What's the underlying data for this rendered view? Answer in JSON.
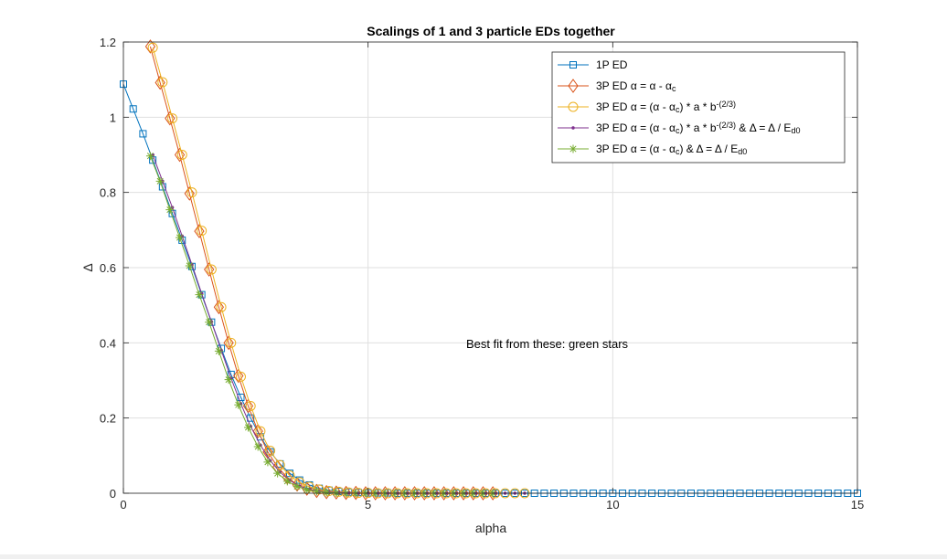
{
  "chart_data": {
    "type": "line",
    "title": "Scalings of 1 and 3 particle EDs together",
    "xlabel": "alpha",
    "ylabel": "Δ",
    "xlim": [
      0,
      15
    ],
    "ylim": [
      0,
      1.2
    ],
    "xticks": [
      0,
      5,
      10,
      15
    ],
    "yticks": [
      0,
      0.2,
      0.4,
      0.6,
      0.8,
      1,
      1.2
    ],
    "xtick_labels": [
      "0",
      "5",
      "10",
      "15"
    ],
    "ytick_labels": [
      "0",
      "0.2",
      "0.4",
      "0.6",
      "0.8",
      "1",
      "1.2"
    ],
    "grid": true,
    "legend_position": "top-right",
    "annotation": "Best fit from these: green stars",
    "series": [
      {
        "name": "1P ED",
        "legend_parts": [
          {
            "t": "1P ED"
          }
        ],
        "color": "#0072BD",
        "marker": "square",
        "x": [
          0,
          0.2,
          0.4,
          0.6,
          0.8,
          1.0,
          1.2,
          1.4,
          1.6,
          1.8,
          2.0,
          2.2,
          2.4,
          2.6,
          2.8,
          3.0,
          3.2,
          3.4,
          3.6,
          3.8,
          4.0,
          4.2,
          4.4,
          4.6,
          4.8,
          5.0,
          5.2,
          5.4,
          5.6,
          5.8,
          6.0,
          6.2,
          6.4,
          6.6,
          6.8,
          7.0,
          7.2,
          7.4,
          7.6,
          7.8,
          8.0,
          8.2,
          8.4,
          8.6,
          8.8,
          9.0,
          9.2,
          9.4,
          9.6,
          9.8,
          10.0,
          10.2,
          10.4,
          10.6,
          10.8,
          11.0,
          11.2,
          11.4,
          11.6,
          11.8,
          12.0,
          12.2,
          12.4,
          12.6,
          12.8,
          13.0,
          13.2,
          13.4,
          13.6,
          13.8,
          14.0,
          14.2,
          14.4,
          14.6,
          14.8,
          15.0
        ],
        "y": [
          1.088,
          1.022,
          0.956,
          0.886,
          0.815,
          0.744,
          0.673,
          0.603,
          0.528,
          0.455,
          0.385,
          0.316,
          0.255,
          0.2,
          0.15,
          0.11,
          0.078,
          0.053,
          0.035,
          0.022,
          0.013,
          0.008,
          0.005,
          0.003,
          0.002,
          0.001,
          0.001,
          0.001,
          0,
          0,
          0,
          0,
          0,
          0,
          0,
          0,
          0,
          0,
          0,
          0,
          0,
          0,
          0,
          0,
          0,
          0,
          0,
          0,
          0,
          0,
          0,
          0,
          0,
          0,
          0,
          0,
          0,
          0,
          0,
          0,
          0,
          0,
          0,
          0,
          0,
          0,
          0,
          0,
          0,
          0,
          0,
          0,
          0,
          0,
          0,
          0
        ]
      },
      {
        "name": "3P ED α = α - αc",
        "legend_parts": [
          {
            "t": "3P ED "
          },
          {
            "t": "α"
          },
          {
            "t": " = "
          },
          {
            "t": "α"
          },
          {
            "t": " - "
          },
          {
            "t": "α"
          },
          {
            "t": "c",
            "sub": true
          }
        ],
        "color": "#D95319",
        "marker": "diamond",
        "x": [
          0.55,
          0.75,
          0.95,
          1.15,
          1.35,
          1.55,
          1.75,
          1.95,
          2.15,
          2.35,
          2.55,
          2.75,
          2.95,
          3.15,
          3.35,
          3.55,
          3.75,
          3.95,
          4.15,
          4.35,
          4.55,
          4.75,
          4.95,
          5.15,
          5.35,
          5.55,
          5.75,
          5.95,
          6.15,
          6.35,
          6.55,
          6.75,
          6.95,
          7.15,
          7.35,
          7.55
        ],
        "y": [
          1.188,
          1.092,
          0.997,
          0.9,
          0.797,
          0.697,
          0.595,
          0.495,
          0.4,
          0.312,
          0.232,
          0.165,
          0.11,
          0.07,
          0.042,
          0.023,
          0.012,
          0.006,
          0.003,
          0.002,
          0.001,
          0.001,
          0,
          0,
          0,
          0,
          0,
          0,
          0,
          0,
          0,
          0,
          0,
          0,
          0,
          0
        ]
      },
      {
        "name": "3P ED α = (α - αc) * a * b^-(2/3)",
        "legend_parts": [
          {
            "t": "3P ED "
          },
          {
            "t": "α"
          },
          {
            "t": " = ("
          },
          {
            "t": "α"
          },
          {
            "t": " - "
          },
          {
            "t": "α"
          },
          {
            "t": "c",
            "sub": true
          },
          {
            "t": ") * a * b"
          },
          {
            "t": "-(2/3)",
            "sup": true
          }
        ],
        "color": "#EDB120",
        "marker": "circle",
        "x": [
          0.6,
          0.8,
          1.0,
          1.2,
          1.4,
          1.6,
          1.8,
          2.0,
          2.2,
          2.4,
          2.6,
          2.8,
          3.0,
          3.2,
          3.4,
          3.6,
          3.8,
          4.0,
          4.2,
          4.4,
          4.6,
          4.8,
          5.0,
          5.2,
          5.4,
          5.6,
          5.8,
          6.0,
          6.2,
          6.4,
          6.6,
          6.8,
          7.0,
          7.2,
          7.4,
          7.6,
          7.8,
          8.0,
          8.2
        ],
        "y": [
          1.185,
          1.093,
          0.997,
          0.9,
          0.8,
          0.698,
          0.595,
          0.495,
          0.4,
          0.31,
          0.232,
          0.165,
          0.113,
          0.075,
          0.047,
          0.029,
          0.017,
          0.01,
          0.006,
          0.004,
          0.002,
          0.001,
          0.001,
          0,
          0,
          0,
          0,
          0,
          0,
          0,
          0,
          0,
          0,
          0,
          0,
          0,
          0,
          0,
          0
        ]
      },
      {
        "name": "3P ED α = (α - αc) * a * b^-(2/3) & Δ = Δ / Ed0",
        "legend_parts": [
          {
            "t": "3P ED "
          },
          {
            "t": "α"
          },
          {
            "t": " = ("
          },
          {
            "t": "α"
          },
          {
            "t": " - "
          },
          {
            "t": "α"
          },
          {
            "t": "c",
            "sub": true
          },
          {
            "t": ") * a * b"
          },
          {
            "t": "-(2/3)",
            "sup": true
          },
          {
            "t": " & "
          },
          {
            "t": "Δ"
          },
          {
            "t": " = "
          },
          {
            "t": "Δ"
          },
          {
            "t": " / E"
          },
          {
            "t": "d0",
            "sub": true
          }
        ],
        "color": "#7E2F8E",
        "marker": "point",
        "x": [
          0.6,
          0.8,
          1.0,
          1.2,
          1.4,
          1.6,
          1.8,
          2.0,
          2.2,
          2.4,
          2.6,
          2.8,
          3.0,
          3.2,
          3.4,
          3.6,
          3.8,
          4.0,
          4.2,
          4.4,
          4.6,
          4.8,
          5.0,
          5.2,
          5.4,
          5.6,
          5.8,
          6.0,
          6.2,
          6.4,
          6.6,
          6.8,
          7.0,
          7.2,
          7.4,
          7.6,
          7.8,
          8.0,
          8.2
        ],
        "y": [
          0.9,
          0.83,
          0.76,
          0.684,
          0.608,
          0.531,
          0.456,
          0.38,
          0.306,
          0.238,
          0.178,
          0.128,
          0.087,
          0.056,
          0.034,
          0.019,
          0.01,
          0.005,
          0.003,
          0.002,
          0.001,
          0,
          0,
          0,
          0,
          0,
          0,
          0,
          0,
          0,
          0,
          0,
          0,
          0,
          0,
          0,
          0,
          0,
          0
        ]
      },
      {
        "name": "3P ED α = (α - αc) & Δ = Δ / Ed0",
        "legend_parts": [
          {
            "t": "3P ED "
          },
          {
            "t": "α"
          },
          {
            "t": " = ("
          },
          {
            "t": "α"
          },
          {
            "t": " - "
          },
          {
            "t": "α"
          },
          {
            "t": "c",
            "sub": true
          },
          {
            "t": ") & "
          },
          {
            "t": "Δ"
          },
          {
            "t": " = "
          },
          {
            "t": "Δ"
          },
          {
            "t": " / E"
          },
          {
            "t": "d0",
            "sub": true
          }
        ],
        "color": "#77AC30",
        "marker": "star",
        "x": [
          0.55,
          0.75,
          0.95,
          1.15,
          1.35,
          1.55,
          1.75,
          1.95,
          2.15,
          2.35,
          2.55,
          2.75,
          2.95,
          3.15,
          3.35,
          3.55,
          3.75,
          3.95,
          4.15,
          4.35,
          4.55,
          4.75,
          4.95,
          5.15,
          5.35,
          5.55,
          5.75,
          5.95,
          6.15,
          6.35,
          6.55,
          6.75,
          6.95,
          7.15,
          7.35,
          7.55
        ],
        "y": [
          0.897,
          0.83,
          0.754,
          0.68,
          0.605,
          0.528,
          0.455,
          0.378,
          0.302,
          0.235,
          0.175,
          0.124,
          0.083,
          0.053,
          0.032,
          0.018,
          0.009,
          0.005,
          0.002,
          0.001,
          0,
          0,
          0,
          0,
          0,
          0,
          0,
          0,
          0,
          0,
          0,
          0,
          0,
          0,
          0,
          0
        ]
      }
    ]
  }
}
